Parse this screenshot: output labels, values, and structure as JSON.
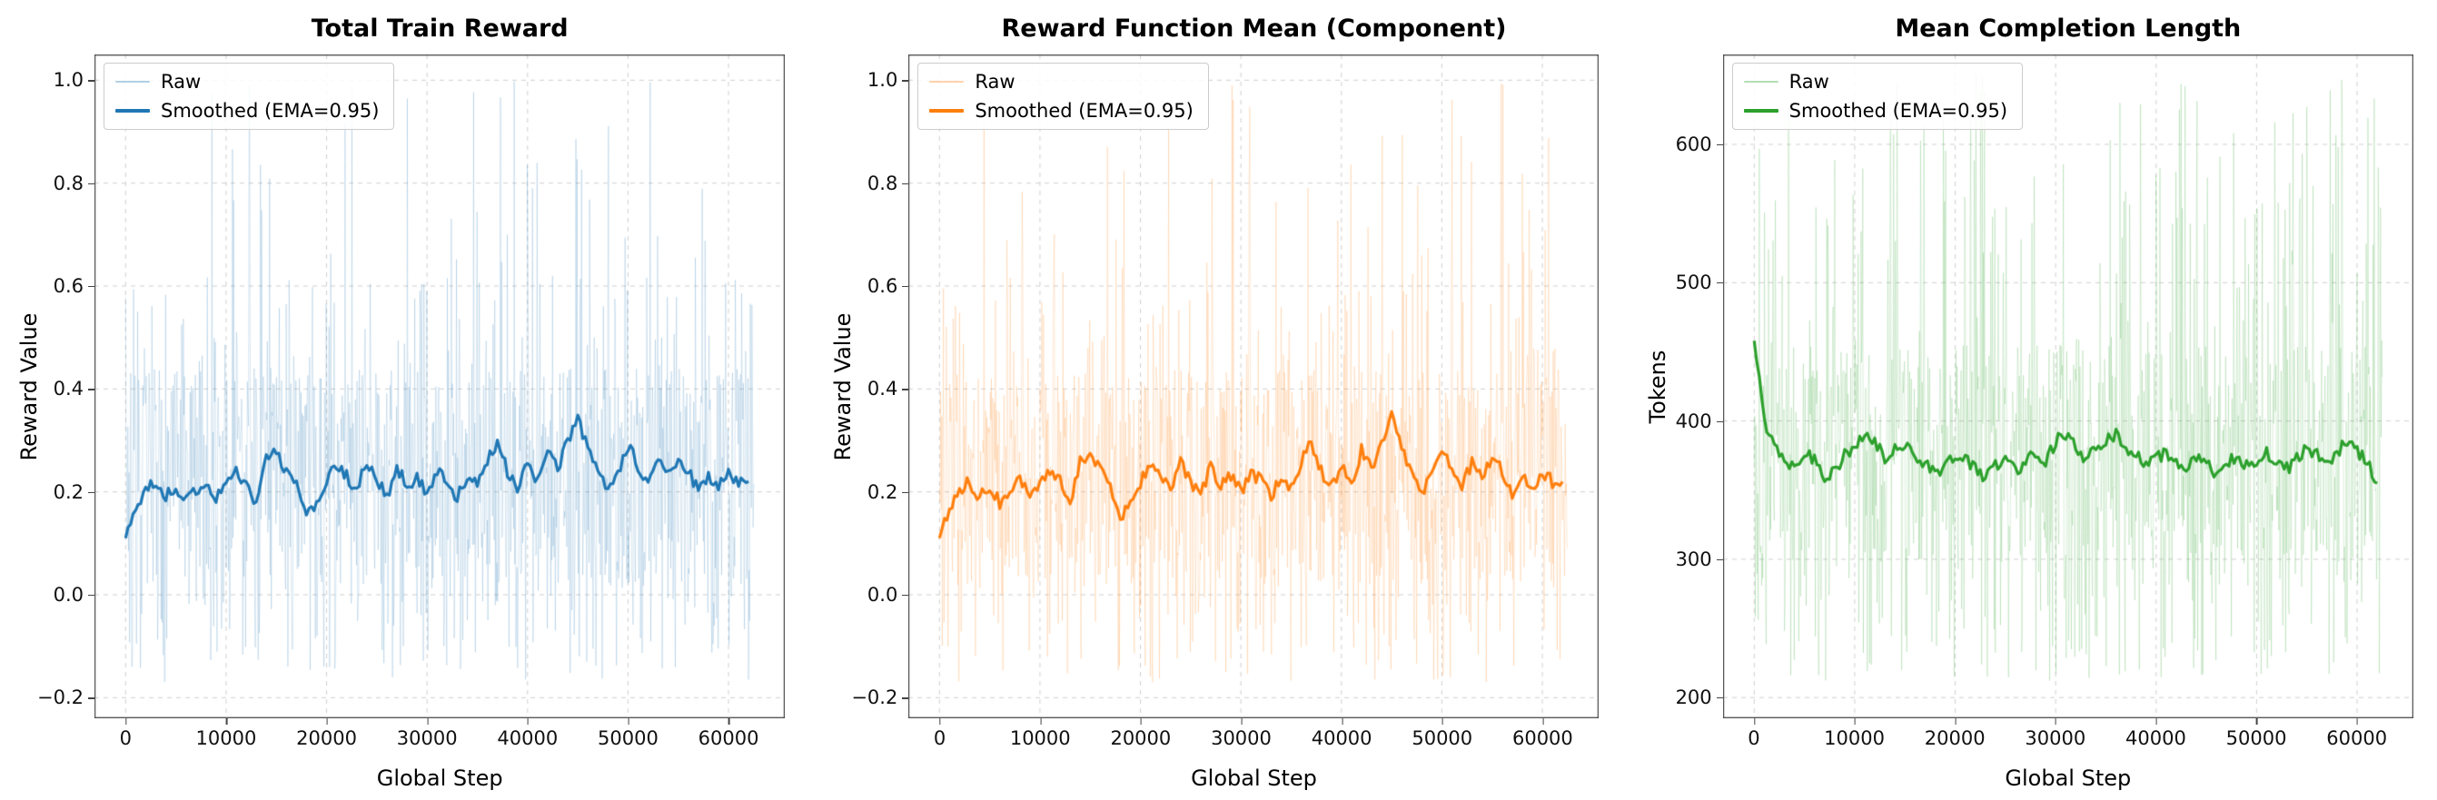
{
  "figure": {
    "background": "#ffffff"
  },
  "chart_data": [
    {
      "type": "line",
      "title": "Total Train Reward",
      "xlabel": "Global Step",
      "ylabel": "Reward Value",
      "xlim": [
        -3100,
        65600
      ],
      "ylim": [
        -0.24,
        1.05
      ],
      "grid": true,
      "grid_style": "dashed",
      "grid_color": "#d0d0d0",
      "legend_position": "top-left",
      "xticks": [
        0,
        10000,
        20000,
        30000,
        40000,
        50000,
        60000
      ],
      "xtick_labels": [
        "0",
        "10000",
        "20000",
        "30000",
        "40000",
        "50000",
        "60000"
      ],
      "yticks": [
        -0.2,
        0.0,
        0.2,
        0.4,
        0.6,
        0.8,
        1.0
      ],
      "ytick_labels": [
        "−0.2",
        "0.0",
        "0.2",
        "0.4",
        "0.6",
        "0.8",
        "1.0"
      ],
      "colors": {
        "raw": "rgba(31,119,180,0.18)",
        "raw_legend": "rgba(31,119,180,0.35)",
        "smoothed": "#1f77b4"
      },
      "raw": {
        "seed": 7,
        "n": 1100,
        "x_max": 62500,
        "levels": [
          {
            "p": 0.05,
            "lo": 0.55,
            "hi": 1.0
          },
          {
            "p": 0.08,
            "lo": 0.32,
            "hi": 0.62
          },
          {
            "p": 0.12,
            "lo": -0.17,
            "hi": 0.04
          },
          {
            "p": 0.75,
            "lo": 0.02,
            "hi": 0.44
          }
        ]
      },
      "series": [
        {
          "name": "Raw"
        },
        {
          "name": "Smoothed (EMA=0.95)",
          "x_step": 1000,
          "jitter": 0.013,
          "values": [
            0.11,
            0.17,
            0.2,
            0.22,
            0.19,
            0.21,
            0.18,
            0.2,
            0.22,
            0.19,
            0.21,
            0.24,
            0.22,
            0.18,
            0.26,
            0.28,
            0.24,
            0.21,
            0.15,
            0.18,
            0.22,
            0.25,
            0.23,
            0.2,
            0.26,
            0.22,
            0.19,
            0.25,
            0.21,
            0.23,
            0.2,
            0.24,
            0.22,
            0.19,
            0.23,
            0.21,
            0.26,
            0.3,
            0.24,
            0.21,
            0.25,
            0.22,
            0.28,
            0.24,
            0.3,
            0.35,
            0.28,
            0.24,
            0.2,
            0.23,
            0.29,
            0.25,
            0.21,
            0.26,
            0.23,
            0.27,
            0.24,
            0.2,
            0.23,
            0.21,
            0.24,
            0.22,
            0.22
          ]
        }
      ]
    },
    {
      "type": "line",
      "title": "Reward Function Mean (Component)",
      "xlabel": "Global Step",
      "ylabel": "Reward Value",
      "xlim": [
        -3100,
        65600
      ],
      "ylim": [
        -0.24,
        1.05
      ],
      "grid": true,
      "grid_style": "dashed",
      "grid_color": "#d0d0d0",
      "legend_position": "top-left",
      "xticks": [
        0,
        10000,
        20000,
        30000,
        40000,
        50000,
        60000
      ],
      "xtick_labels": [
        "0",
        "10000",
        "20000",
        "30000",
        "40000",
        "50000",
        "60000"
      ],
      "yticks": [
        -0.2,
        0.0,
        0.2,
        0.4,
        0.6,
        0.8,
        1.0
      ],
      "ytick_labels": [
        "−0.2",
        "0.0",
        "0.2",
        "0.4",
        "0.6",
        "0.8",
        "1.0"
      ],
      "colors": {
        "raw": "rgba(255,127,14,0.18)",
        "raw_legend": "rgba(255,127,14,0.35)",
        "smoothed": "#ff7f0e"
      },
      "raw": {
        "seed": 21,
        "n": 1100,
        "x_max": 62500,
        "levels": [
          {
            "p": 0.05,
            "lo": 0.55,
            "hi": 1.0
          },
          {
            "p": 0.08,
            "lo": 0.32,
            "hi": 0.62
          },
          {
            "p": 0.12,
            "lo": -0.17,
            "hi": 0.04
          },
          {
            "p": 0.75,
            "lo": 0.02,
            "hi": 0.44
          }
        ]
      },
      "series": [
        {
          "name": "Raw"
        },
        {
          "name": "Smoothed (EMA=0.95)",
          "x_step": 1000,
          "jitter": 0.013,
          "values": [
            0.11,
            0.17,
            0.2,
            0.22,
            0.19,
            0.21,
            0.18,
            0.2,
            0.22,
            0.19,
            0.21,
            0.24,
            0.22,
            0.18,
            0.26,
            0.28,
            0.24,
            0.21,
            0.15,
            0.18,
            0.22,
            0.25,
            0.23,
            0.2,
            0.26,
            0.22,
            0.19,
            0.25,
            0.21,
            0.23,
            0.2,
            0.24,
            0.22,
            0.19,
            0.23,
            0.21,
            0.26,
            0.3,
            0.24,
            0.21,
            0.25,
            0.22,
            0.28,
            0.24,
            0.3,
            0.35,
            0.28,
            0.24,
            0.2,
            0.23,
            0.29,
            0.25,
            0.21,
            0.26,
            0.23,
            0.27,
            0.24,
            0.2,
            0.23,
            0.21,
            0.24,
            0.22,
            0.22
          ]
        }
      ]
    },
    {
      "type": "line",
      "title": "Mean Completion Length",
      "xlabel": "Global Step",
      "ylabel": "Tokens",
      "xlim": [
        -3100,
        65600
      ],
      "ylim": [
        185,
        665
      ],
      "grid": true,
      "grid_style": "dashed",
      "grid_color": "#d0d0d0",
      "legend_position": "top-left",
      "xticks": [
        0,
        10000,
        20000,
        30000,
        40000,
        50000,
        60000
      ],
      "xtick_labels": [
        "0",
        "10000",
        "20000",
        "30000",
        "40000",
        "50000",
        "60000"
      ],
      "yticks": [
        200,
        300,
        400,
        500,
        600
      ],
      "ytick_labels": [
        "200",
        "300",
        "400",
        "500",
        "600"
      ],
      "colors": {
        "raw": "rgba(44,160,44,0.18)",
        "raw_legend": "rgba(44,160,44,0.35)",
        "smoothed": "#2ca02c"
      },
      "raw": {
        "seed": 42,
        "n": 1100,
        "x_max": 62500,
        "levels": [
          {
            "p": 0.05,
            "lo": 545,
            "hi": 655
          },
          {
            "p": 0.08,
            "lo": 455,
            "hi": 560
          },
          {
            "p": 0.12,
            "lo": 212,
            "hi": 300
          },
          {
            "p": 0.75,
            "lo": 300,
            "hi": 455
          }
        ]
      },
      "series": [
        {
          "name": "Raw"
        },
        {
          "name": "Smoothed (EMA=0.95)",
          "x_step": 1000,
          "jitter": 5,
          "values": [
            458,
            400,
            385,
            372,
            368,
            378,
            372,
            360,
            365,
            375,
            380,
            388,
            385,
            372,
            378,
            385,
            375,
            370,
            362,
            368,
            375,
            372,
            365,
            360,
            368,
            372,
            365,
            370,
            378,
            372,
            385,
            390,
            380,
            372,
            378,
            385,
            390,
            382,
            375,
            368,
            372,
            378,
            370,
            365,
            372,
            368,
            362,
            370,
            375,
            368,
            372,
            378,
            370,
            365,
            372,
            380,
            375,
            370,
            378,
            385,
            378,
            370,
            355
          ]
        }
      ]
    }
  ]
}
